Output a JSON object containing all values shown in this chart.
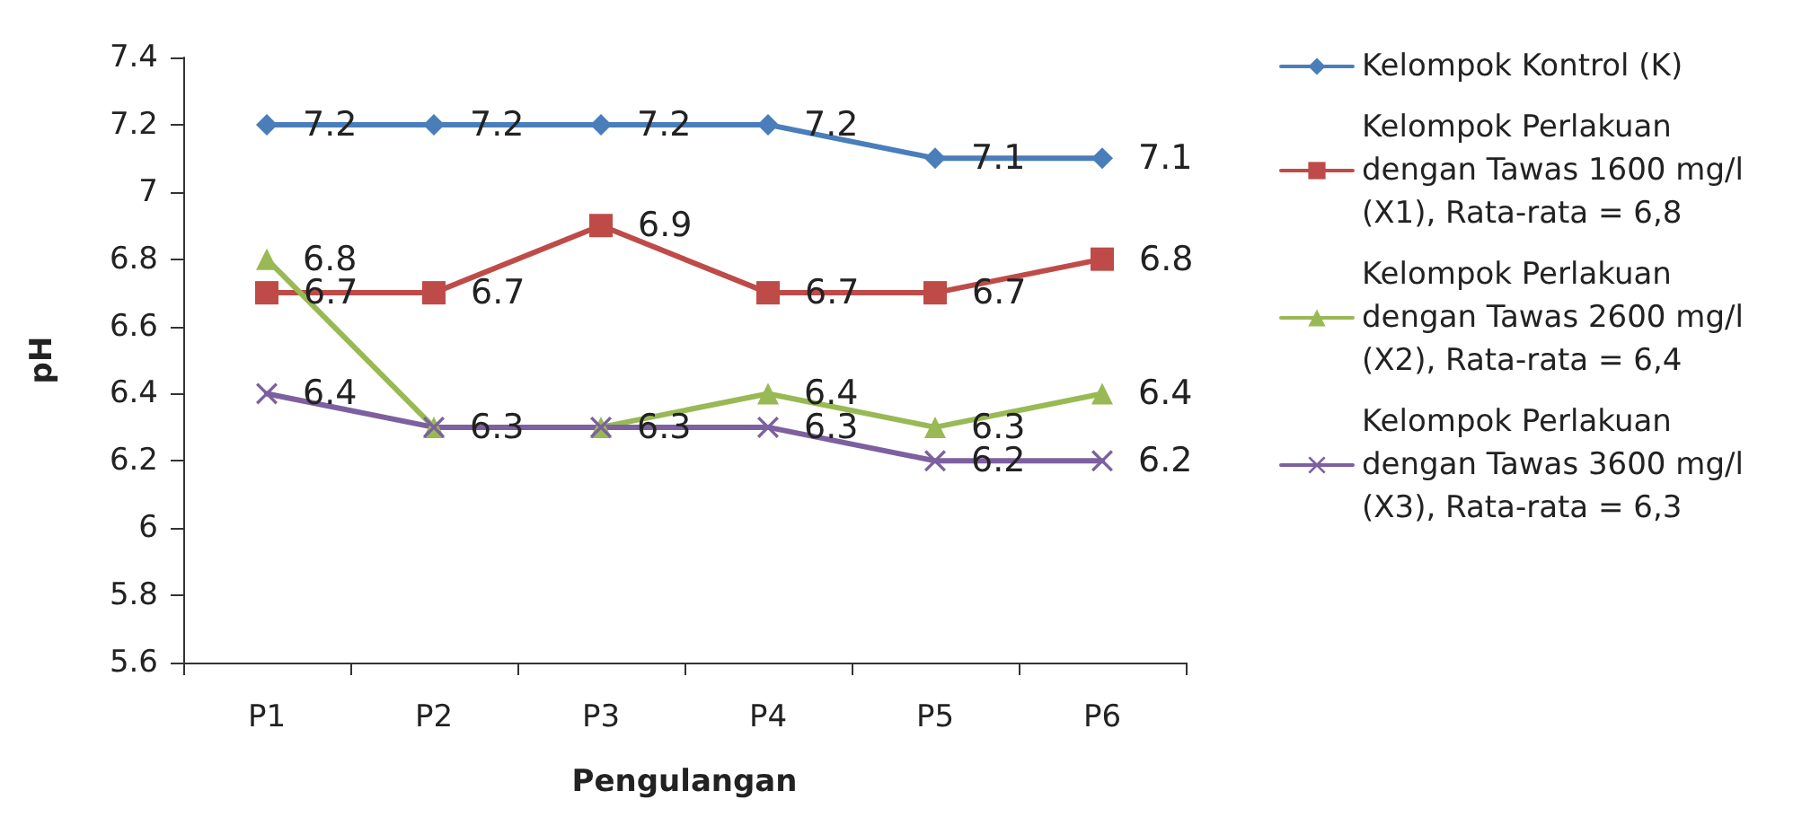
{
  "chart_data": {
    "type": "line",
    "xlabel": "Pengulangan",
    "ylabel": "pH",
    "categories": [
      "P1",
      "P2",
      "P3",
      "P4",
      "P5",
      "P6"
    ],
    "series": [
      {
        "name": "Kelompok Kontrol (K)",
        "color": "#4a7ebb",
        "marker": "diamond",
        "values": [
          7.2,
          7.2,
          7.2,
          7.2,
          7.1,
          7.1
        ]
      },
      {
        "name": "Kelompok Perlakuan dengan Tawas 1600 mg/l (X1), Rata-rata = 6,8",
        "color": "#be4b48",
        "marker": "square",
        "values": [
          6.7,
          6.7,
          6.9,
          6.7,
          6.7,
          6.8
        ]
      },
      {
        "name": "Kelompok Perlakuan dengan Tawas 2600 mg/l (X2), Rata-rata = 6,4",
        "color": "#98b954",
        "marker": "triangle",
        "values": [
          6.8,
          6.3,
          6.3,
          6.4,
          6.3,
          6.4
        ],
        "value_labels": [
          "6.8",
          null,
          null,
          "6.4",
          "6.3",
          "6.4"
        ]
      },
      {
        "name": "Kelompok Perlakuan dengan Tawas 3600 mg/l (X3), Rata-rata = 6,3",
        "color": "#7d60a0",
        "marker": "cross",
        "values": [
          6.4,
          6.3,
          6.3,
          6.3,
          6.2,
          6.2
        ]
      }
    ],
    "ylim": [
      5.6,
      7.4
    ],
    "yticks": [
      5.6,
      5.8,
      6,
      6.2,
      6.4,
      6.6,
      6.8,
      7,
      7.2,
      7.4
    ],
    "grid": false,
    "legend": "right",
    "data_labels": true,
    "line_style": "solid"
  }
}
